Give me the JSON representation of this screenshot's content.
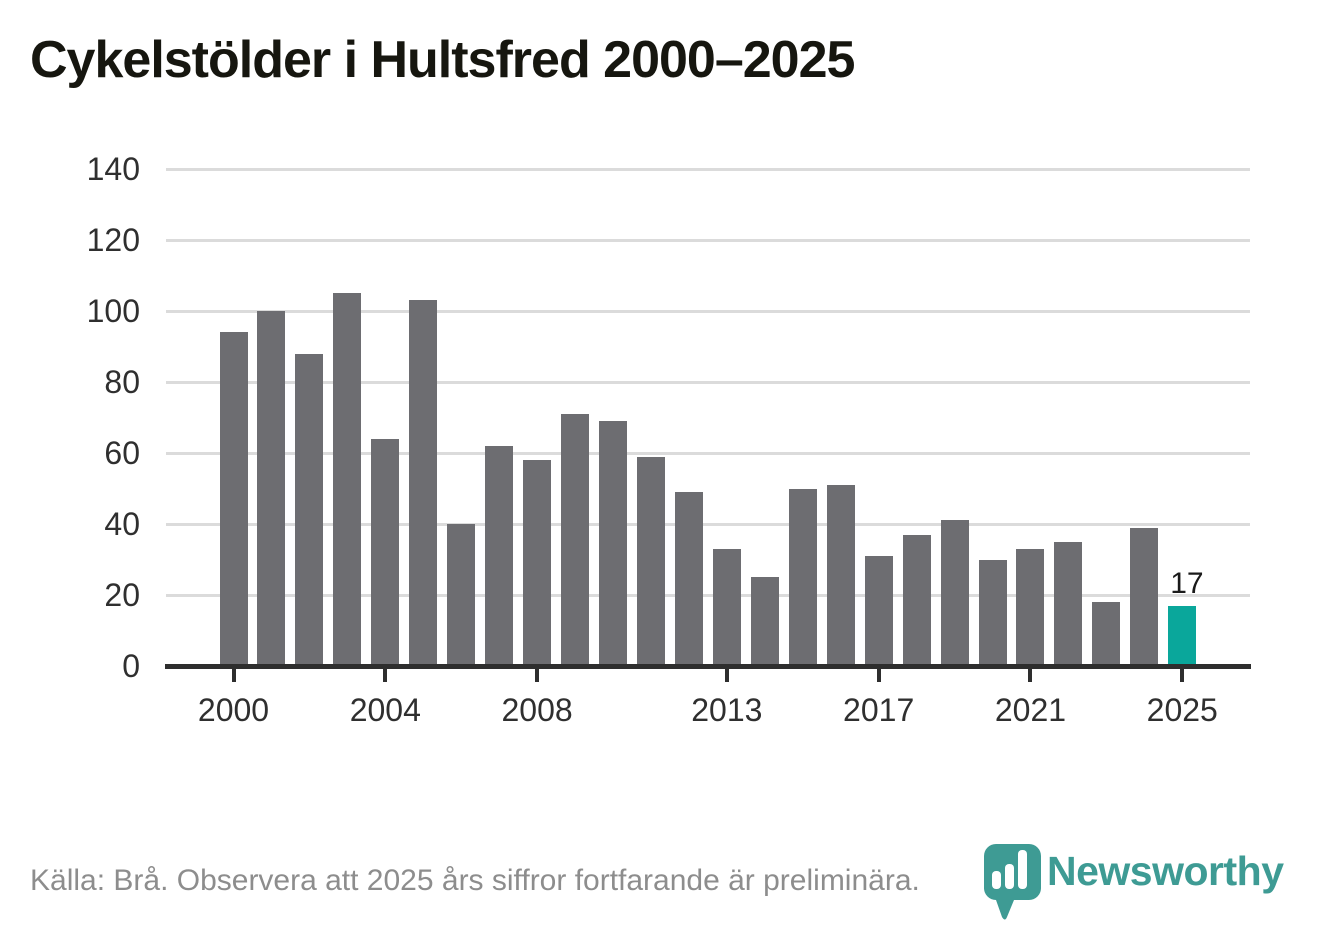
{
  "header": {
    "title": "Cykelstölder i Hultsfred 2000–2025"
  },
  "chart_data": {
    "type": "bar",
    "title": "Cykelstölder i Hultsfred 2000–2025",
    "categories": [
      2000,
      2001,
      2002,
      2003,
      2004,
      2005,
      2006,
      2007,
      2008,
      2009,
      2010,
      2011,
      2012,
      2013,
      2014,
      2015,
      2016,
      2017,
      2018,
      2019,
      2020,
      2021,
      2022,
      2023,
      2024,
      2025
    ],
    "values": [
      94,
      100,
      88,
      105,
      64,
      103,
      40,
      62,
      58,
      71,
      69,
      59,
      49,
      33,
      25,
      50,
      51,
      31,
      37,
      41,
      30,
      33,
      35,
      18,
      39,
      17
    ],
    "highlight": {
      "year": 2025,
      "value": 17,
      "label": "17"
    },
    "xlabel": "",
    "ylabel": "",
    "ylim": [
      0,
      140
    ],
    "yticks": [
      0,
      20,
      40,
      60,
      80,
      100,
      120,
      140
    ],
    "xticks": [
      2000,
      2004,
      2008,
      2013,
      2017,
      2021,
      2025
    ],
    "grid": true,
    "legend_position": "none",
    "colors": {
      "bar": "#6D6D71",
      "highlight_bar": "#0AA79B",
      "gridline": "#DBDBDB",
      "axis": "#2E2E2E",
      "tick_label": "#2F2F2F",
      "value_label": "#1A1A1A"
    }
  },
  "footer": {
    "source_note": "Källa: Brå. Observera att 2025 års siffror fortfarande är preliminära."
  },
  "branding": {
    "name": "Newsworthy",
    "color": "#3E9B94",
    "icon": "bar-chart-pin-icon"
  }
}
